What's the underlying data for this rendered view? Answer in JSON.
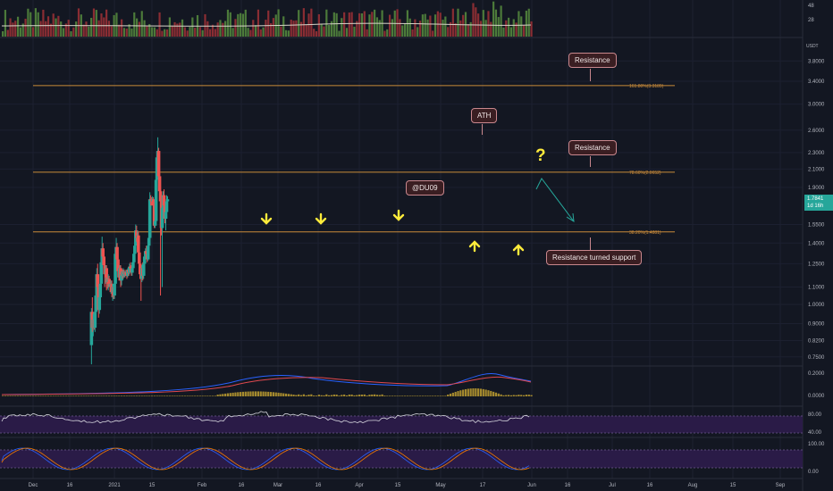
{
  "chart_data": {
    "type": "candlestick",
    "currency": "USDT",
    "x_ticks": [
      "Dec",
      "16",
      "2021",
      "15",
      "Feb",
      "16",
      "Mar",
      "16",
      "Apr",
      "15",
      "May",
      "17",
      "Jun",
      "16",
      "Jul",
      "16",
      "Aug",
      "15",
      "Sep"
    ],
    "y_ticks": [
      "3.8000",
      "3.4000",
      "3.0000",
      "2.6000",
      "2.3000",
      "2.1000",
      "1.9000",
      "1.5500",
      "1.4000",
      "1.2500",
      "1.1000",
      "1.0000",
      "0.9000",
      "0.8200",
      "0.7500"
    ],
    "volume_ticks": [
      "48",
      "28"
    ],
    "macd_ticks": [
      "0.2000",
      "0.0000"
    ],
    "rsi_ticks": [
      "80.00",
      "40.00"
    ],
    "stoch_ticks": [
      "100.00",
      "0.00"
    ],
    "candles": [
      {
        "d": "2021-02-05",
        "o": 0.8,
        "h": 0.98,
        "l": 0.72,
        "c": 0.96
      },
      {
        "d": "2021-02-06",
        "o": 0.96,
        "h": 1.04,
        "l": 0.86,
        "c": 0.88
      },
      {
        "d": "2021-02-07",
        "o": 0.88,
        "h": 0.95,
        "l": 0.84,
        "c": 0.92
      },
      {
        "d": "2021-02-08",
        "o": 0.92,
        "h": 0.96,
        "l": 0.87,
        "c": 0.88
      },
      {
        "d": "2021-02-09",
        "o": 0.88,
        "h": 0.98,
        "l": 0.86,
        "c": 0.96
      },
      {
        "d": "2021-02-10",
        "o": 0.96,
        "h": 1.1,
        "l": 0.94,
        "c": 1.05
      },
      {
        "d": "2021-02-11",
        "o": 1.05,
        "h": 1.22,
        "l": 1.03,
        "c": 1.18
      },
      {
        "d": "2021-02-12",
        "o": 1.18,
        "h": 1.25,
        "l": 1.07,
        "c": 1.1
      },
      {
        "d": "2021-02-13",
        "o": 1.1,
        "h": 1.14,
        "l": 0.93,
        "c": 0.97
      },
      {
        "d": "2021-02-14",
        "o": 0.97,
        "h": 1.06,
        "l": 0.95,
        "c": 1.04
      },
      {
        "d": "2021-02-15",
        "o": 1.04,
        "h": 1.14,
        "l": 1.02,
        "c": 1.12
      },
      {
        "d": "2021-02-16",
        "o": 1.12,
        "h": 1.28,
        "l": 1.1,
        "c": 1.26
      },
      {
        "d": "2021-02-17",
        "o": 1.26,
        "h": 1.45,
        "l": 1.24,
        "c": 1.36
      },
      {
        "d": "2021-02-18",
        "o": 1.36,
        "h": 1.4,
        "l": 1.28,
        "c": 1.3
      },
      {
        "d": "2021-02-19",
        "o": 1.3,
        "h": 1.34,
        "l": 1.22,
        "c": 1.24
      },
      {
        "d": "2021-02-20",
        "o": 1.24,
        "h": 1.28,
        "l": 1.1,
        "c": 1.18
      },
      {
        "d": "2021-02-21",
        "o": 1.18,
        "h": 1.24,
        "l": 1.12,
        "c": 1.22
      },
      {
        "d": "2021-02-22",
        "o": 1.22,
        "h": 1.24,
        "l": 1.08,
        "c": 1.16
      },
      {
        "d": "2021-02-23",
        "o": 1.16,
        "h": 1.18,
        "l": 1.09,
        "c": 1.13
      },
      {
        "d": "2021-02-24",
        "o": 1.13,
        "h": 1.18,
        "l": 1.08,
        "c": 1.15
      },
      {
        "d": "2021-02-25",
        "o": 1.15,
        "h": 1.17,
        "l": 1.1,
        "c": 1.12
      },
      {
        "d": "2021-02-26",
        "o": 1.12,
        "h": 1.15,
        "l": 1.07,
        "c": 1.1
      },
      {
        "d": "2021-02-27",
        "o": 1.1,
        "h": 1.14,
        "l": 1.06,
        "c": 1.12
      },
      {
        "d": "2021-02-28",
        "o": 1.12,
        "h": 1.14,
        "l": 1.04,
        "c": 1.07
      },
      {
        "d": "2021-03-01",
        "o": 1.07,
        "h": 1.12,
        "l": 1.02,
        "c": 1.1
      },
      {
        "d": "2021-03-02",
        "o": 1.1,
        "h": 1.12,
        "l": 1.03,
        "c": 1.05
      },
      {
        "d": "2021-03-03",
        "o": 1.05,
        "h": 1.14,
        "l": 1.03,
        "c": 1.12
      },
      {
        "d": "2021-03-04",
        "o": 1.12,
        "h": 1.35,
        "l": 1.1,
        "c": 1.32
      },
      {
        "d": "2021-03-05",
        "o": 1.32,
        "h": 1.44,
        "l": 1.28,
        "c": 1.37
      },
      {
        "d": "2021-03-06",
        "o": 1.37,
        "h": 1.4,
        "l": 1.24,
        "c": 1.28
      },
      {
        "d": "2021-03-07",
        "o": 1.28,
        "h": 1.32,
        "l": 1.16,
        "c": 1.2
      },
      {
        "d": "2021-03-08",
        "o": 1.2,
        "h": 1.26,
        "l": 1.14,
        "c": 1.16
      },
      {
        "d": "2021-03-09",
        "o": 1.16,
        "h": 1.24,
        "l": 1.14,
        "c": 1.22
      },
      {
        "d": "2021-03-10",
        "o": 1.22,
        "h": 1.24,
        "l": 1.1,
        "c": 1.14
      },
      {
        "d": "2021-03-11",
        "o": 1.14,
        "h": 1.2,
        "l": 1.11,
        "c": 1.18
      },
      {
        "d": "2021-03-12",
        "o": 1.18,
        "h": 1.21,
        "l": 1.15,
        "c": 1.17
      },
      {
        "d": "2021-03-13",
        "o": 1.17,
        "h": 1.22,
        "l": 1.15,
        "c": 1.19
      },
      {
        "d": "2021-03-14",
        "o": 1.19,
        "h": 1.21,
        "l": 1.16,
        "c": 1.18
      },
      {
        "d": "2021-03-15",
        "o": 1.18,
        "h": 1.2,
        "l": 1.16,
        "c": 1.19
      },
      {
        "d": "2021-03-16",
        "o": 1.19,
        "h": 1.21,
        "l": 1.17,
        "c": 1.18
      },
      {
        "d": "2021-03-17",
        "o": 1.18,
        "h": 1.2,
        "l": 1.15,
        "c": 1.17
      },
      {
        "d": "2021-03-18",
        "o": 1.17,
        "h": 1.22,
        "l": 1.16,
        "c": 1.21
      },
      {
        "d": "2021-03-19",
        "o": 1.21,
        "h": 1.23,
        "l": 1.17,
        "c": 1.19
      },
      {
        "d": "2021-03-20",
        "o": 1.19,
        "h": 1.25,
        "l": 1.18,
        "c": 1.23
      },
      {
        "d": "2021-03-21",
        "o": 1.23,
        "h": 1.26,
        "l": 1.2,
        "c": 1.22
      },
      {
        "d": "2021-03-22",
        "o": 1.22,
        "h": 1.24,
        "l": 1.17,
        "c": 1.19
      },
      {
        "d": "2021-03-23",
        "o": 1.19,
        "h": 1.23,
        "l": 1.17,
        "c": 1.22
      },
      {
        "d": "2021-03-24",
        "o": 1.22,
        "h": 1.28,
        "l": 1.21,
        "c": 1.26
      },
      {
        "d": "2021-03-25",
        "o": 1.26,
        "h": 1.34,
        "l": 1.24,
        "c": 1.32
      },
      {
        "d": "2021-03-26",
        "o": 1.32,
        "h": 1.41,
        "l": 1.3,
        "c": 1.38
      },
      {
        "d": "2021-03-27",
        "o": 1.38,
        "h": 1.55,
        "l": 1.36,
        "c": 1.5
      },
      {
        "d": "2021-03-28",
        "o": 1.5,
        "h": 1.54,
        "l": 1.41,
        "c": 1.44
      },
      {
        "d": "2021-03-29",
        "o": 1.44,
        "h": 1.5,
        "l": 1.4,
        "c": 1.46
      },
      {
        "d": "2021-03-30",
        "o": 1.46,
        "h": 1.49,
        "l": 1.3,
        "c": 1.33
      },
      {
        "d": "2021-03-31",
        "o": 1.33,
        "h": 1.36,
        "l": 1.2,
        "c": 1.25
      },
      {
        "d": "2021-04-01",
        "o": 1.25,
        "h": 1.28,
        "l": 1.15,
        "c": 1.18
      },
      {
        "d": "2021-04-02",
        "o": 1.18,
        "h": 1.22,
        "l": 1.02,
        "c": 1.15
      },
      {
        "d": "2021-04-03",
        "o": 1.15,
        "h": 1.24,
        "l": 1.13,
        "c": 1.22
      },
      {
        "d": "2021-04-04",
        "o": 1.22,
        "h": 1.26,
        "l": 1.14,
        "c": 1.17
      },
      {
        "d": "2021-04-05",
        "o": 1.17,
        "h": 1.27,
        "l": 1.15,
        "c": 1.25
      },
      {
        "d": "2021-04-06",
        "o": 1.25,
        "h": 1.32,
        "l": 1.23,
        "c": 1.3
      },
      {
        "d": "2021-04-07",
        "o": 1.3,
        "h": 1.36,
        "l": 1.28,
        "c": 1.34
      },
      {
        "d": "2021-04-08",
        "o": 1.34,
        "h": 1.38,
        "l": 1.3,
        "c": 1.32
      },
      {
        "d": "2021-04-09",
        "o": 1.32,
        "h": 1.36,
        "l": 1.26,
        "c": 1.28
      },
      {
        "d": "2021-04-10",
        "o": 1.28,
        "h": 1.4,
        "l": 1.27,
        "c": 1.38
      },
      {
        "d": "2021-04-11",
        "o": 1.38,
        "h": 1.46,
        "l": 1.36,
        "c": 1.44
      },
      {
        "d": "2021-04-12",
        "o": 1.44,
        "h": 1.85,
        "l": 1.42,
        "c": 1.78
      },
      {
        "d": "2021-04-13",
        "o": 1.78,
        "h": 1.82,
        "l": 1.72,
        "c": 1.77
      },
      {
        "d": "2021-04-14",
        "o": 1.77,
        "h": 1.8,
        "l": 1.72,
        "c": 1.76
      },
      {
        "d": "2021-04-15",
        "o": 1.76,
        "h": 1.81,
        "l": 1.72,
        "c": 1.78
      },
      {
        "d": "2021-04-16",
        "o": 1.78,
        "h": 1.8,
        "l": 1.7,
        "c": 1.72
      },
      {
        "d": "2021-04-17",
        "o": 1.72,
        "h": 1.76,
        "l": 1.52,
        "c": 1.54
      },
      {
        "d": "2021-04-18",
        "o": 1.54,
        "h": 1.6,
        "l": 1.52,
        "c": 1.58
      },
      {
        "d": "2021-04-19",
        "o": 1.58,
        "h": 2.02,
        "l": 1.56,
        "c": 1.98
      },
      {
        "d": "2021-04-20",
        "o": 1.98,
        "h": 2.3,
        "l": 1.96,
        "c": 2.24
      },
      {
        "d": "2021-04-21",
        "o": 2.24,
        "h": 2.5,
        "l": 2.2,
        "c": 2.32
      },
      {
        "d": "2021-04-22",
        "o": 2.32,
        "h": 2.36,
        "l": 1.98,
        "c": 2.02
      },
      {
        "d": "2021-04-23",
        "o": 2.02,
        "h": 2.05,
        "l": 1.8,
        "c": 1.86
      },
      {
        "d": "2021-04-24",
        "o": 1.86,
        "h": 1.9,
        "l": 1.05,
        "c": 1.76
      },
      {
        "d": "2021-04-25",
        "o": 1.76,
        "h": 1.8,
        "l": 1.46,
        "c": 1.52
      },
      {
        "d": "2021-04-26",
        "o": 1.52,
        "h": 1.74,
        "l": 1.1,
        "c": 1.7
      },
      {
        "d": "2021-04-27",
        "o": 1.7,
        "h": 1.86,
        "l": 1.58,
        "c": 1.82
      },
      {
        "d": "2021-04-28",
        "o": 1.82,
        "h": 1.88,
        "l": 1.66,
        "c": 1.72
      },
      {
        "d": "2021-04-29",
        "o": 1.72,
        "h": 1.76,
        "l": 1.56,
        "c": 1.6
      },
      {
        "d": "2021-04-30",
        "o": 1.6,
        "h": 1.7,
        "l": 1.5,
        "c": 1.66
      },
      {
        "d": "2021-05-01",
        "o": 1.66,
        "h": 1.82,
        "l": 1.64,
        "c": 1.76
      },
      {
        "d": "2021-05-02",
        "o": 1.76,
        "h": 1.81,
        "l": 1.72,
        "c": 1.78
      }
    ],
    "indicators": [
      {
        "name": "MACD",
        "ticks": [
          "0.2000",
          "0.0000"
        ]
      },
      {
        "name": "RSI",
        "ticks": [
          "80.00",
          "40.00"
        ]
      },
      {
        "name": "Stoch RSI",
        "ticks": [
          "100.00",
          "0.00"
        ]
      }
    ],
    "fib_levels": [
      {
        "label": "161.80%(3.3189)",
        "price": 3.3189
      },
      {
        "label": "78.60%(2.0652)",
        "price": 2.0652
      },
      {
        "label": "38.20%(1.4881)",
        "price": 1.4881
      }
    ],
    "current_price": "1.7841",
    "countdown": "1d 16h",
    "annotations": {
      "watermark": "@DU09",
      "ath": "ATH",
      "resistance_top": "Resistance",
      "resistance_mid": "Resistance",
      "support": "Resistance turned support",
      "question": "?"
    }
  }
}
